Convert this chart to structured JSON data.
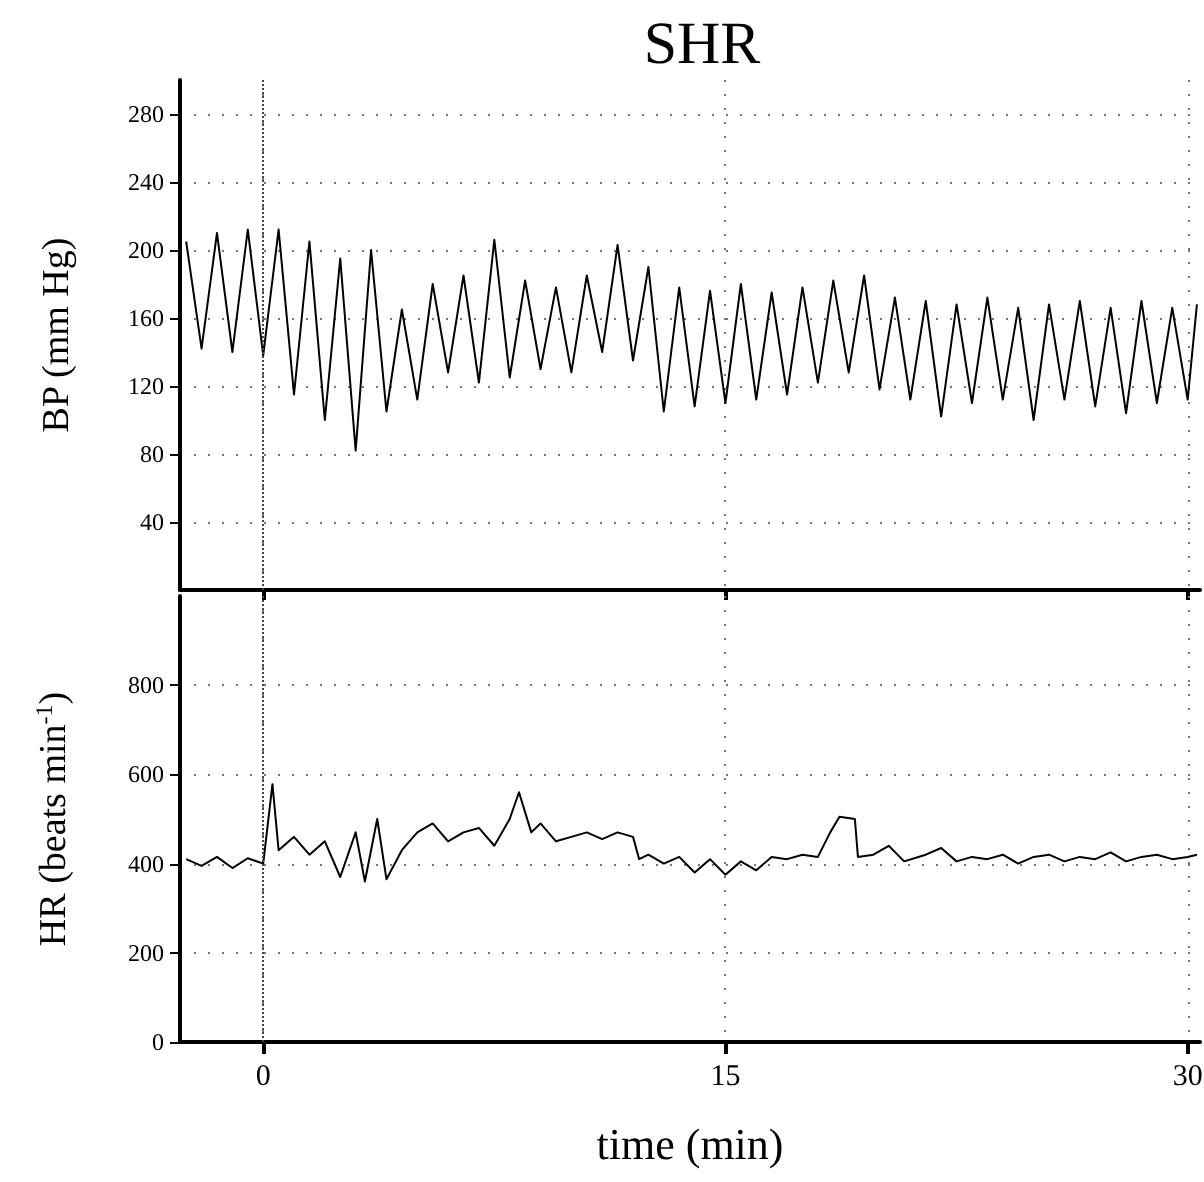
{
  "chart_data": [
    {
      "type": "line",
      "title": "SHR",
      "ylabel": "BP (mm Hg)",
      "xlim": [
        -2.7,
        30.4
      ],
      "xticks": [
        0,
        15,
        30
      ],
      "ylim": [
        0,
        300
      ],
      "yticks": [
        40,
        80,
        120,
        160,
        200,
        240,
        280
      ],
      "tick_labels": "y",
      "grid": true,
      "marker": "none",
      "line_style": "solid",
      "ref_lines": [
        {
          "axis": "x",
          "value": 0,
          "color": "#444444",
          "line_style": "dotted"
        }
      ],
      "series": [
        {
          "color": "#000000",
          "x": [
            -2.5,
            -2.0,
            -1.5,
            -1.0,
            -0.5,
            0.0,
            0.5,
            1.0,
            1.5,
            2.0,
            2.5,
            3.0,
            3.5,
            4.0,
            4.5,
            5.0,
            5.5,
            6.0,
            6.5,
            7.0,
            7.5,
            8.0,
            8.5,
            9.0,
            9.5,
            10.0,
            10.5,
            11.0,
            11.5,
            12.0,
            12.5,
            13.0,
            13.5,
            14.0,
            14.5,
            15.0,
            15.5,
            16.0,
            16.5,
            17.0,
            17.5,
            18.0,
            18.5,
            19.0,
            19.5,
            20.0,
            20.5,
            21.0,
            21.5,
            22.0,
            22.5,
            23.0,
            23.5,
            24.0,
            24.5,
            25.0,
            25.5,
            26.0,
            26.5,
            27.0,
            27.5,
            28.0,
            28.5,
            29.0,
            29.5,
            30.0,
            30.3
          ],
          "values": [
            205,
            142,
            210,
            140,
            212,
            138,
            212,
            115,
            205,
            100,
            195,
            82,
            200,
            105,
            165,
            112,
            180,
            128,
            185,
            122,
            206,
            125,
            182,
            130,
            178,
            128,
            185,
            140,
            203,
            135,
            190,
            105,
            178,
            108,
            176,
            110,
            180,
            112,
            175,
            115,
            178,
            122,
            182,
            128,
            185,
            118,
            172,
            112,
            170,
            102,
            168,
            110,
            172,
            112,
            166,
            100,
            168,
            112,
            170,
            108,
            166,
            104,
            170,
            110,
            166,
            112,
            168
          ]
        }
      ]
    },
    {
      "type": "line",
      "xlabel": "time (min)",
      "ylabel": "HR (beats min$^{-1}$)",
      "xlim": [
        -2.7,
        30.4
      ],
      "xticks": [
        0,
        15,
        30
      ],
      "ylim": [
        0,
        1000
      ],
      "yticks": [
        0,
        200,
        400,
        600,
        800
      ],
      "grid": true,
      "marker": "none",
      "line_style": "solid",
      "ref_lines": [
        {
          "axis": "x",
          "value": 0,
          "color": "#444444",
          "line_style": "dotted"
        }
      ],
      "series": [
        {
          "color": "#000000",
          "x": [
            -2.5,
            -2.0,
            -1.5,
            -1.0,
            -0.5,
            0.0,
            0.3,
            0.5,
            1.0,
            1.5,
            2.0,
            2.5,
            3.0,
            3.3,
            3.7,
            4.0,
            4.5,
            5.0,
            5.5,
            6.0,
            6.5,
            7.0,
            7.5,
            8.0,
            8.3,
            8.7,
            9.0,
            9.5,
            10.0,
            10.5,
            11.0,
            11.5,
            12.0,
            12.2,
            12.5,
            13.0,
            13.5,
            14.0,
            14.5,
            15.0,
            15.5,
            16.0,
            16.5,
            17.0,
            17.5,
            18.0,
            18.4,
            18.7,
            19.2,
            19.3,
            19.8,
            20.3,
            20.8,
            21.5,
            22.0,
            22.5,
            23.0,
            23.5,
            24.0,
            24.5,
            25.0,
            25.5,
            26.0,
            26.5,
            27.0,
            27.5,
            28.0,
            28.5,
            29.0,
            29.5,
            30.0,
            30.3
          ],
          "values": [
            410,
            395,
            415,
            390,
            412,
            400,
            578,
            430,
            460,
            420,
            450,
            370,
            470,
            360,
            500,
            365,
            430,
            470,
            490,
            450,
            470,
            480,
            440,
            500,
            560,
            470,
            490,
            450,
            460,
            470,
            455,
            470,
            460,
            410,
            420,
            400,
            415,
            380,
            410,
            375,
            405,
            385,
            415,
            410,
            420,
            415,
            470,
            505,
            500,
            415,
            420,
            440,
            405,
            420,
            435,
            405,
            415,
            410,
            420,
            400,
            415,
            420,
            405,
            415,
            410,
            425,
            405,
            415,
            420,
            410,
            415,
            420
          ]
        }
      ]
    }
  ]
}
